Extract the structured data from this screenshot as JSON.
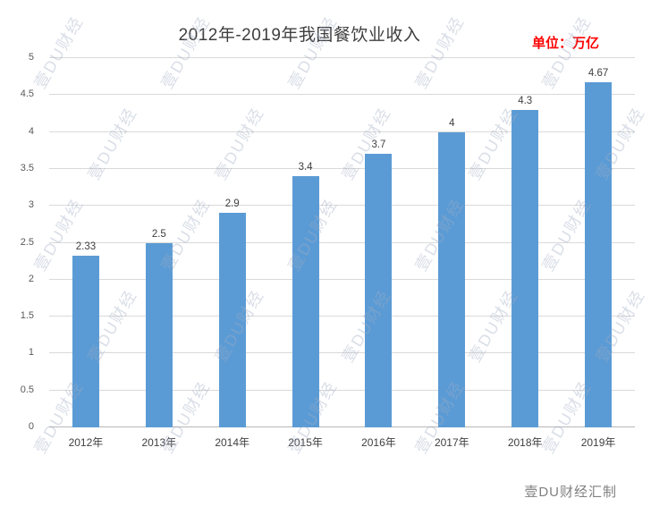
{
  "title": "2012年-2019年我国餐饮业收入",
  "unit_label": "单位：万亿",
  "footer": "壹DU财经汇制",
  "watermark_text": "壹DU财经",
  "colors": {
    "bar": "#5b9bd5",
    "unit": "#ff0000",
    "grid": "#d9d9d9",
    "title": "#3f3f3f",
    "credit": "#808080"
  },
  "chart_data": {
    "type": "bar",
    "categories": [
      "2012年",
      "2013年",
      "2014年",
      "2015年",
      "2016年",
      "2017年",
      "2018年",
      "2019年"
    ],
    "values": [
      2.33,
      2.5,
      2.9,
      3.4,
      3.7,
      4,
      4.3,
      4.67
    ],
    "title": "2012年-2019年我国餐饮业收入",
    "xlabel": "",
    "ylabel": "",
    "ylim": [
      0,
      5
    ],
    "ytick_step": 0.5,
    "grid": true,
    "legend": "none",
    "data_labels": true,
    "unit": "万亿"
  }
}
